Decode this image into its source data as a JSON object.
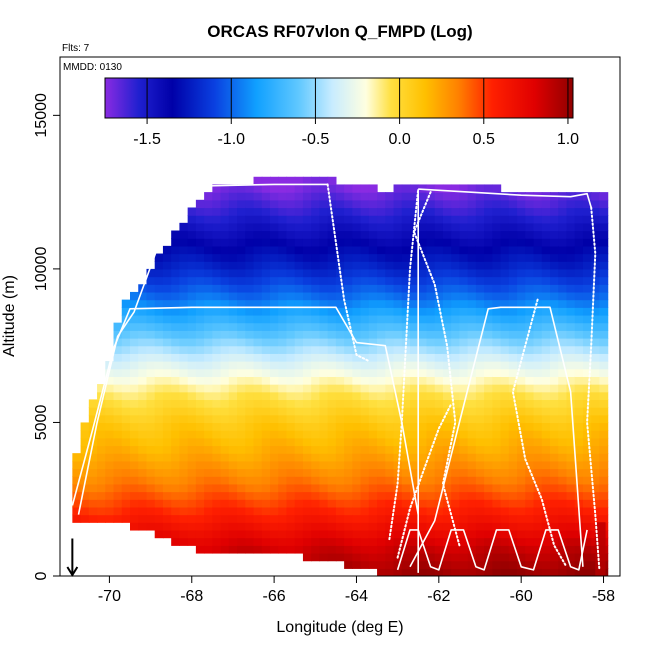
{
  "chart_data": {
    "type": "heatmap",
    "title": "ORCAS RF07vlon Q_FMPD (Log)",
    "subtitle_flights": "Flts: 7",
    "subtitle_date": "MMDD: 0130",
    "xlabel": "Longitude (deg E)",
    "ylabel": "Altitude (m)",
    "xlim": [
      -71.2,
      -57.6
    ],
    "ylim": [
      0,
      16900
    ],
    "x_ticks": [
      -70,
      -68,
      -66,
      -64,
      -62,
      -60,
      -58
    ],
    "x_tick_labels": [
      "-70",
      "-68",
      "-66",
      "-64",
      "-62",
      "-60",
      "-58"
    ],
    "y_ticks": [
      0,
      5000,
      10000,
      15000
    ],
    "y_tick_labels": [
      "0",
      "5000",
      "10000",
      "15000"
    ],
    "colorbar": {
      "min": -1.75,
      "max": 1.03,
      "ticks": [
        -1.5,
        -1.0,
        -0.5,
        0.0,
        0.5,
        1.0
      ],
      "tick_labels": [
        "-1.5",
        "-1.0",
        "-0.5",
        "0.0",
        "0.5",
        "1.0"
      ],
      "stops": [
        {
          "v": -1.75,
          "c": "#8a2be2"
        },
        {
          "v": -1.55,
          "c": "#2020d0"
        },
        {
          "v": -1.35,
          "c": "#0000a8"
        },
        {
          "v": -1.1,
          "c": "#0a40e0"
        },
        {
          "v": -0.85,
          "c": "#10a0ff"
        },
        {
          "v": -0.6,
          "c": "#60c8ff"
        },
        {
          "v": -0.4,
          "c": "#c8ecff"
        },
        {
          "v": -0.2,
          "c": "#ffffe0"
        },
        {
          "v": -0.05,
          "c": "#ffe040"
        },
        {
          "v": 0.15,
          "c": "#ffc000"
        },
        {
          "v": 0.35,
          "c": "#ff8000"
        },
        {
          "v": 0.55,
          "c": "#ff2000"
        },
        {
          "v": 0.8,
          "c": "#e00000"
        },
        {
          "v": 1.03,
          "c": "#900000"
        }
      ]
    },
    "field_model": {
      "description": "log10 water vapor mixing ratio, decreasing with altitude",
      "profile_altitude_m": [
        0,
        1000,
        2000,
        3000,
        4000,
        5000,
        6000,
        7000,
        8000,
        9000,
        10000,
        11000,
        12000,
        12800
      ],
      "profile_value": [
        0.95,
        0.8,
        0.55,
        0.35,
        0.2,
        0.08,
        -0.1,
        -0.35,
        -0.65,
        -0.95,
        -1.2,
        -1.4,
        -1.6,
        -1.75
      ]
    },
    "coverage_top_m": [
      {
        "lon": -70.9,
        "alt": 3700
      },
      {
        "lon": -70.6,
        "alt": 4900
      },
      {
        "lon": -70.3,
        "alt": 6000
      },
      {
        "lon": -70.0,
        "alt": 7000
      },
      {
        "lon": -69.7,
        "alt": 8800
      },
      {
        "lon": -69.3,
        "alt": 9400
      },
      {
        "lon": -68.9,
        "alt": 10200
      },
      {
        "lon": -68.5,
        "alt": 11000
      },
      {
        "lon": -68.0,
        "alt": 12000
      },
      {
        "lon": -67.5,
        "alt": 12600
      },
      {
        "lon": -66.0,
        "alt": 13000
      },
      {
        "lon": -64.5,
        "alt": 12900
      },
      {
        "lon": -63.5,
        "alt": 12600
      },
      {
        "lon": -62.0,
        "alt": 12700
      },
      {
        "lon": -60.0,
        "alt": 12600
      },
      {
        "lon": -58.4,
        "alt": 12500
      },
      {
        "lon": -58.2,
        "alt": 12500
      }
    ],
    "coverage_bottom_m": [
      {
        "lon": -70.9,
        "alt": 1800
      },
      {
        "lon": -70.0,
        "alt": 1800
      },
      {
        "lon": -69.0,
        "alt": 1400
      },
      {
        "lon": -68.0,
        "alt": 900
      },
      {
        "lon": -66.5,
        "alt": 700
      },
      {
        "lon": -65.0,
        "alt": 600
      },
      {
        "lon": -63.5,
        "alt": 100
      },
      {
        "lon": -62.0,
        "alt": 0
      },
      {
        "lon": -58.2,
        "alt": 0
      }
    ],
    "flight_tracks": [
      {
        "name": "leg-1",
        "style": "solid",
        "lon": [
          -70.75,
          -70.3,
          -69.8,
          -69.4,
          -68.8,
          -68.3,
          -67.7,
          -66.0,
          -64.7
        ],
        "alt": [
          2000,
          5000,
          7800,
          8600,
          10800,
          11800,
          12700,
          12750,
          12750
        ]
      },
      {
        "name": "leg-1-descent",
        "style": "dotted",
        "lon": [
          -64.7,
          -64.3,
          -64.0,
          -63.7
        ],
        "alt": [
          12750,
          9000,
          7200,
          7000
        ]
      },
      {
        "name": "leg-2",
        "style": "solid",
        "lon": [
          -70.9,
          -70.4,
          -69.9,
          -69.5,
          -68.0,
          -66.0,
          -64.5,
          -64.0,
          -63.3,
          -62.9,
          -62.5
        ],
        "alt": [
          2300,
          4800,
          7400,
          8700,
          8750,
          8750,
          8750,
          7600,
          7500,
          5000,
          2000
        ]
      },
      {
        "name": "leg-3-up",
        "style": "dotted",
        "lon": [
          -63.2,
          -63.0,
          -62.9,
          -62.8,
          -62.7,
          -62.5
        ],
        "alt": [
          1200,
          3000,
          5000,
          7500,
          10000,
          12600
        ]
      },
      {
        "name": "leg-3-vertical",
        "style": "solid",
        "lon": [
          -62.5,
          -62.5
        ],
        "alt": [
          100,
          12600
        ]
      },
      {
        "name": "leg-3-top",
        "style": "solid",
        "lon": [
          -62.5,
          -60.0,
          -58.8,
          -58.4,
          -58.3
        ],
        "alt": [
          12600,
          12400,
          12350,
          12450,
          12000
        ]
      },
      {
        "name": "leg-3-down",
        "style": "dotted",
        "lon": [
          -58.3,
          -58.2,
          -58.3,
          -58.4,
          -58.2,
          -58.1
        ],
        "alt": [
          12000,
          10500,
          7500,
          5000,
          2000,
          200
        ]
      },
      {
        "name": "leg-4",
        "style": "solid",
        "lon": [
          -62.7,
          -62.1,
          -61.5,
          -60.8,
          -60.5,
          -59.3,
          -58.8,
          -58.5
        ],
        "alt": [
          300,
          1800,
          5000,
          8700,
          8750,
          8750,
          6000,
          300
        ]
      },
      {
        "name": "sawtooth-1",
        "style": "solid",
        "lon": [
          -63.0,
          -62.7,
          -62.5,
          -62.2,
          -62.0,
          -61.7,
          -61.4,
          -61.1,
          -60.9,
          -60.6,
          -60.3,
          -60.0,
          -59.7,
          -59.4,
          -59.1,
          -58.8,
          -58.6,
          -58.4
        ],
        "alt": [
          200,
          1500,
          1500,
          300,
          200,
          1500,
          1500,
          300,
          200,
          1500,
          1500,
          300,
          200,
          1500,
          1500,
          300,
          200,
          1500
        ]
      },
      {
        "name": "wander-dotted",
        "style": "dotted",
        "lon": [
          -62.2,
          -62.6,
          -62.1,
          -61.8,
          -61.6,
          -61.9,
          -61.5
        ],
        "alt": [
          12500,
          11200,
          9500,
          7500,
          5000,
          3000,
          1000
        ]
      },
      {
        "name": "wander-dotted-2",
        "style": "dotted",
        "lon": [
          -59.6,
          -60.2,
          -59.9,
          -59.5,
          -59.2,
          -58.9
        ],
        "alt": [
          9000,
          6000,
          3800,
          2500,
          1000,
          300
        ]
      },
      {
        "name": "wander-dotted-3",
        "style": "dotted",
        "lon": [
          -63.0,
          -62.7,
          -62.3,
          -62.0,
          -61.7
        ],
        "alt": [
          600,
          2200,
          3700,
          4800,
          5600
        ]
      }
    ],
    "marker": {
      "type": "arrow-down",
      "lon": -70.9,
      "alt_from": 700,
      "alt_to": 0
    }
  }
}
